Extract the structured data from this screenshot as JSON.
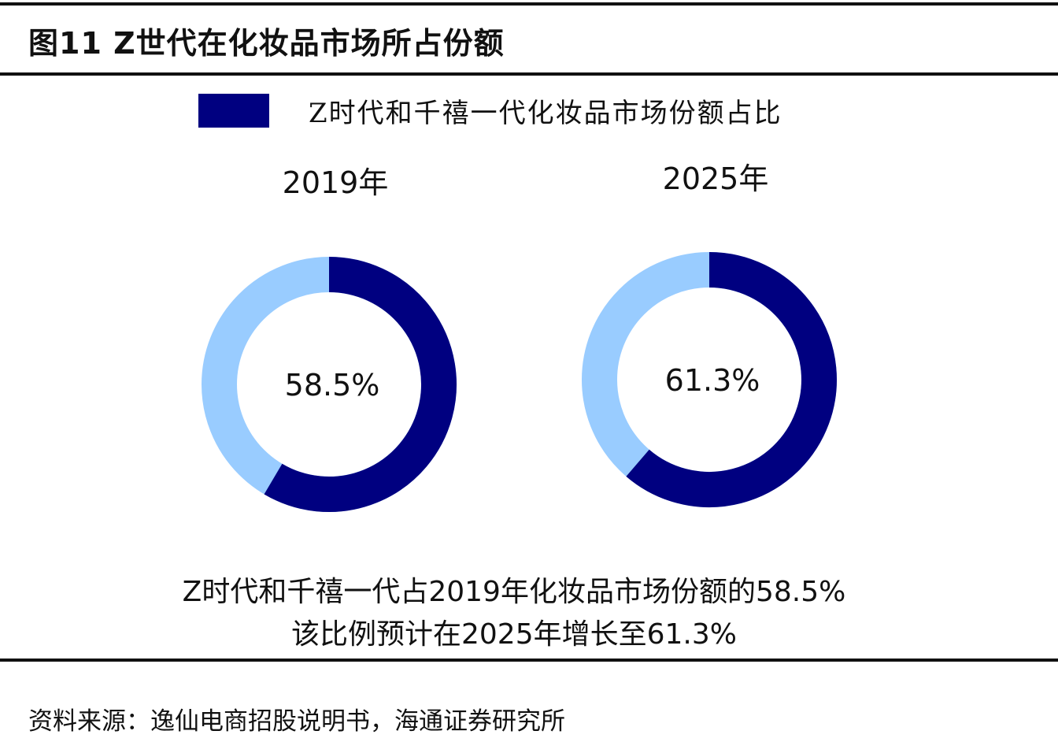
{
  "title": "图11  Z世代在化妆品市场所占份额",
  "chart_data": {
    "type": "pie",
    "subtype": "donut",
    "legend": {
      "label": "Z时代和千禧一代化妆品市场份额占比",
      "placement": "top"
    },
    "colors": {
      "share": "#000080",
      "rest": "#99CCFF"
    },
    "charts": [
      {
        "label": "2019年",
        "value": 58.5,
        "value_label": "58.5%"
      },
      {
        "label": "2025年",
        "value": 61.3,
        "value_label": "61.3%"
      }
    ]
  },
  "notes": [
    "Z时代和千禧一代占2019年化妆品市场份额的58.5%",
    "该比例预计在2025年增长至61.3%"
  ],
  "source": "资料来源：逸仙电商招股说明书，海通证券研究所"
}
